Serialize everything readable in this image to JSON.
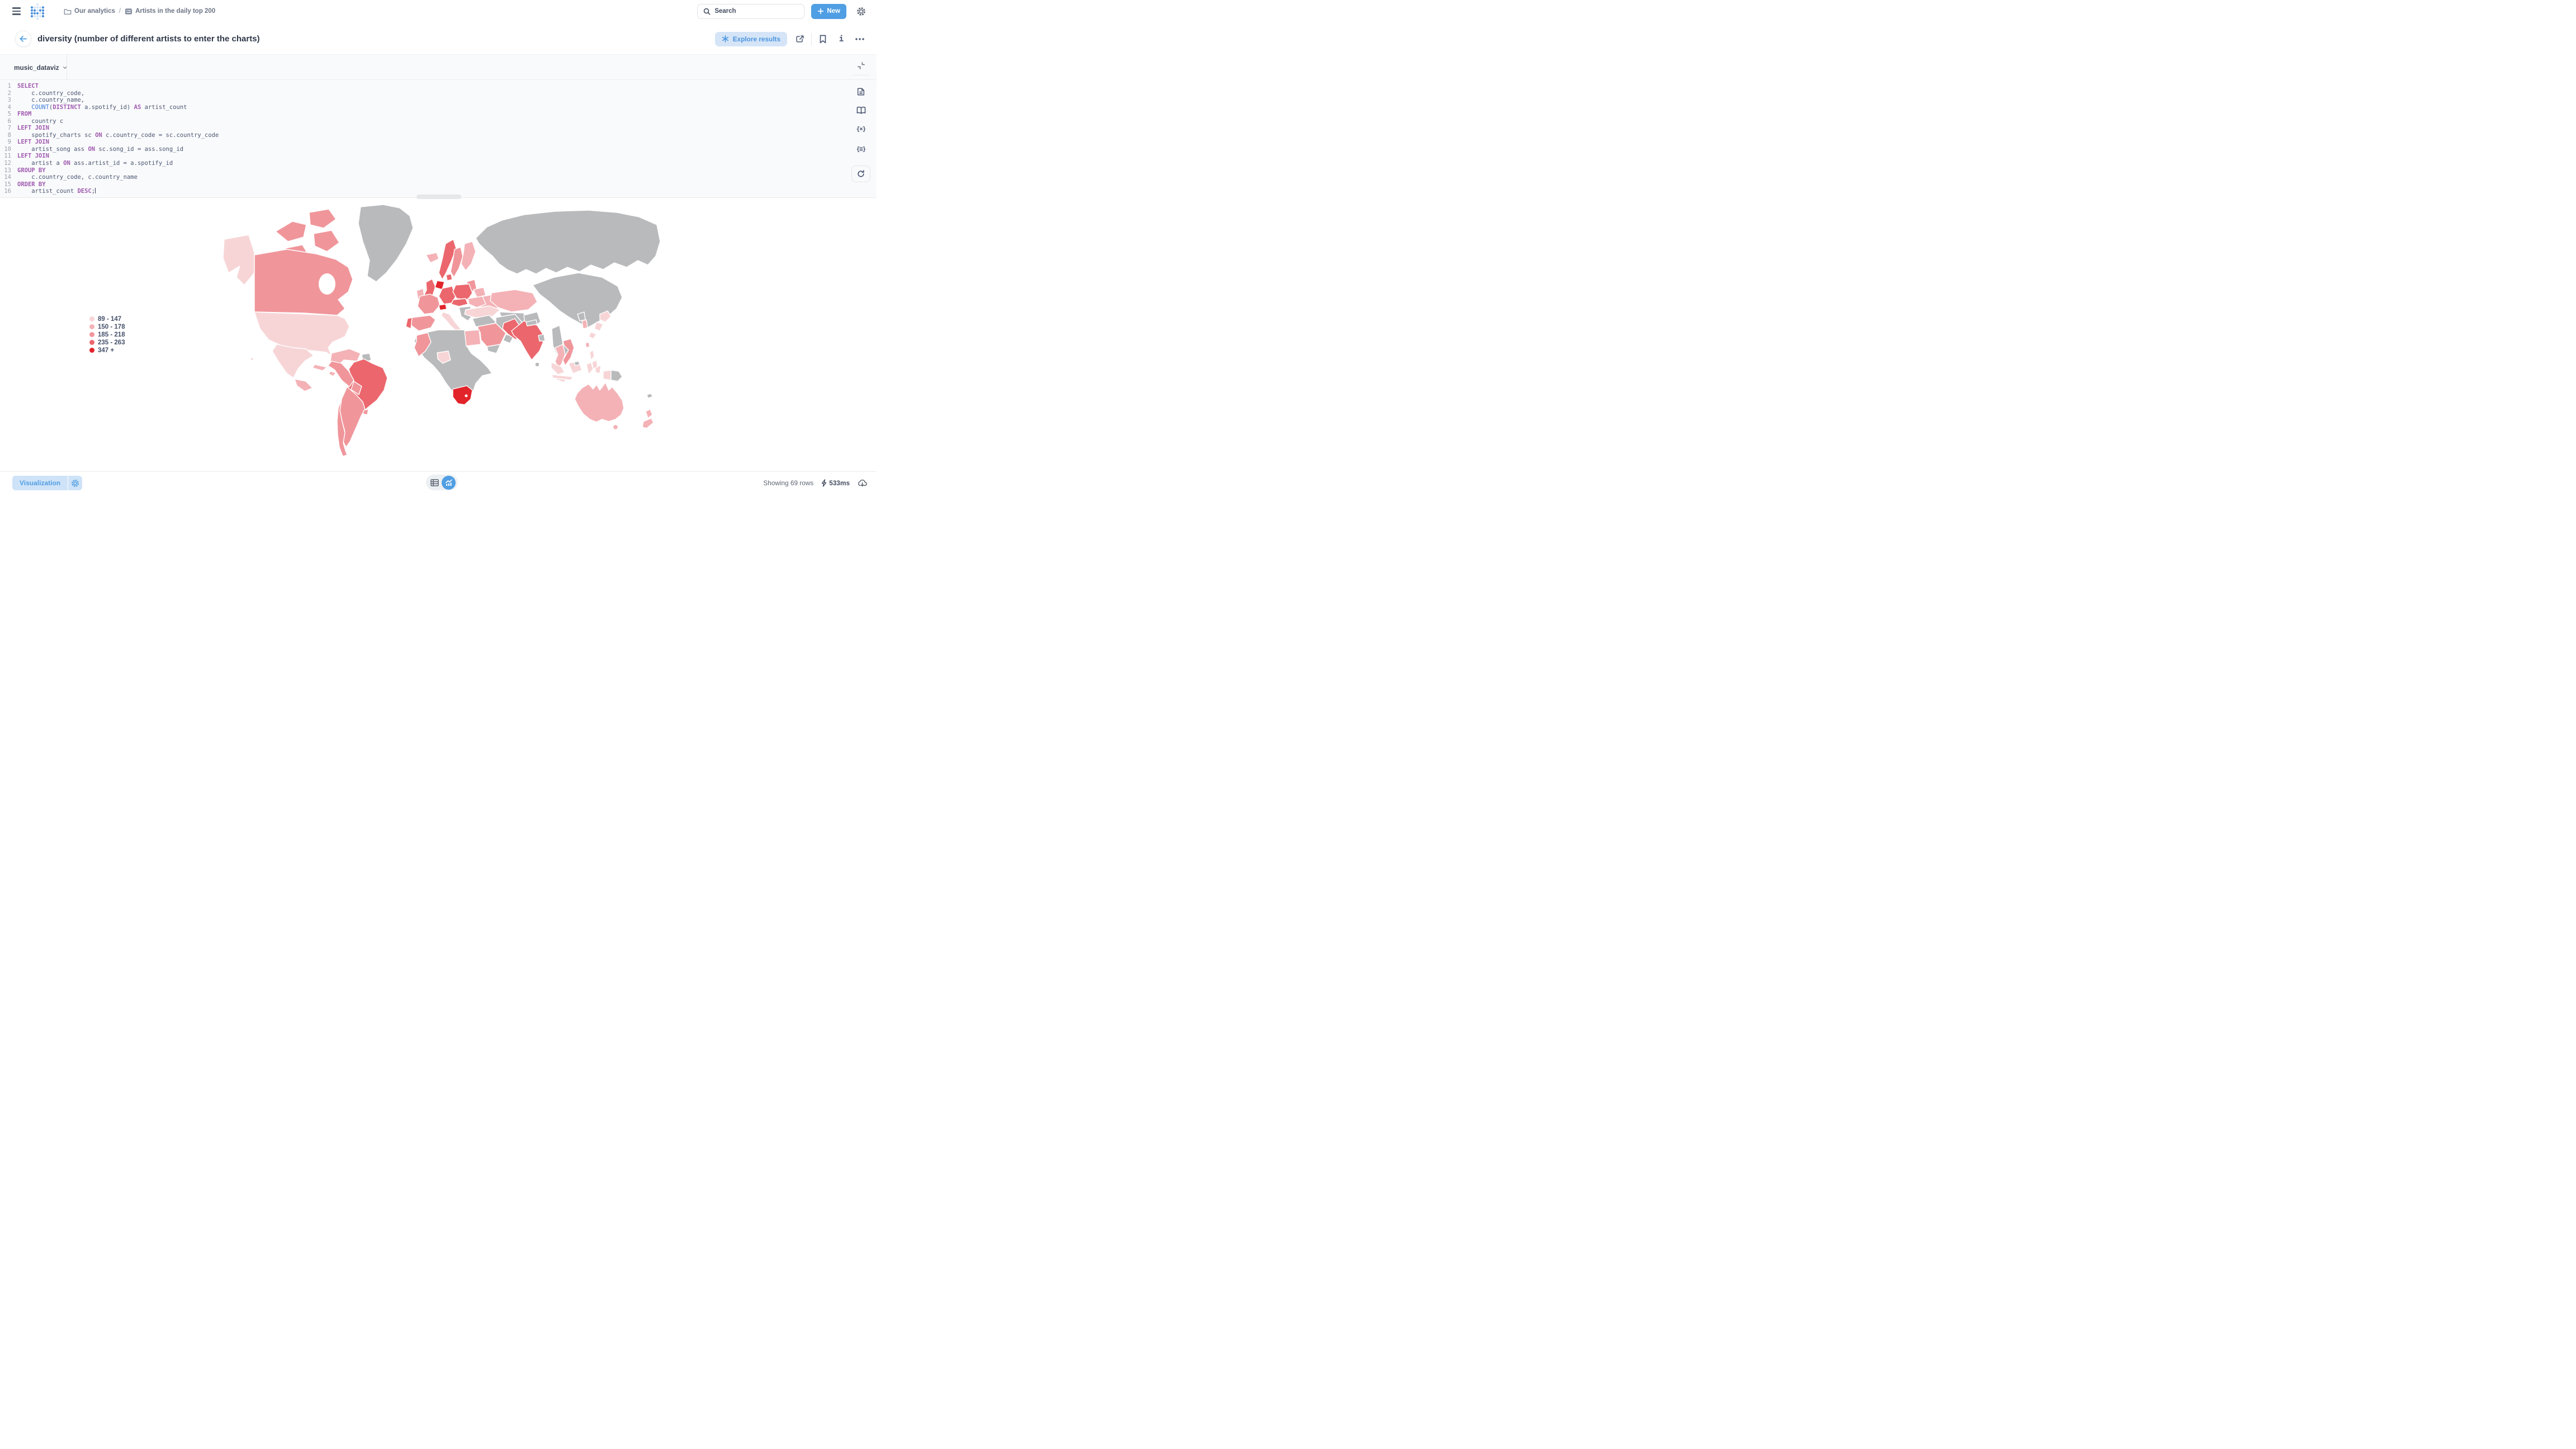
{
  "topnav": {
    "breadcrumb": {
      "collection": "Our analytics",
      "separator": "/",
      "item": "Artists in the daily top 200"
    },
    "search_placeholder": "Search",
    "new_label": "New"
  },
  "header": {
    "title": "diversity (number of different artists to enter the charts)",
    "explore_label": "Explore results"
  },
  "editor": {
    "database": "music_dataviz",
    "token_colors": {
      "kw": "#a05ab0",
      "fn": "#3c7dd9",
      "id": "#4c5773"
    },
    "sql_lines": [
      {
        "n": 1,
        "segs": [
          [
            "kw",
            "SELECT"
          ]
        ]
      },
      {
        "n": 2,
        "segs": [
          [
            "id",
            "    c.country_code,"
          ]
        ]
      },
      {
        "n": 3,
        "segs": [
          [
            "id",
            "    c.country_name,"
          ]
        ]
      },
      {
        "n": 4,
        "segs": [
          [
            "id",
            "    "
          ],
          [
            "fn",
            "COUNT"
          ],
          [
            "id",
            "("
          ],
          [
            "kw",
            "DISTINCT"
          ],
          [
            "id",
            " a.spotify_id) "
          ],
          [
            "kw",
            "AS"
          ],
          [
            "id",
            " artist_count"
          ]
        ]
      },
      {
        "n": 5,
        "segs": [
          [
            "kw",
            "FROM"
          ]
        ]
      },
      {
        "n": 6,
        "segs": [
          [
            "id",
            "    country c"
          ]
        ]
      },
      {
        "n": 7,
        "segs": [
          [
            "kw",
            "LEFT JOIN"
          ]
        ]
      },
      {
        "n": 8,
        "segs": [
          [
            "id",
            "    spotify_charts sc "
          ],
          [
            "kw",
            "ON"
          ],
          [
            "id",
            " c.country_code = sc.country_code"
          ]
        ]
      },
      {
        "n": 9,
        "segs": [
          [
            "kw",
            "LEFT JOIN"
          ]
        ]
      },
      {
        "n": 10,
        "segs": [
          [
            "id",
            "    artist_song ass "
          ],
          [
            "kw",
            "ON"
          ],
          [
            "id",
            " sc.song_id = ass.song_id"
          ]
        ]
      },
      {
        "n": 11,
        "segs": [
          [
            "kw",
            "LEFT JOIN"
          ]
        ]
      },
      {
        "n": 12,
        "segs": [
          [
            "id",
            "    artist a "
          ],
          [
            "kw",
            "ON"
          ],
          [
            "id",
            " ass.artist_id = a.spotify_id"
          ]
        ]
      },
      {
        "n": 13,
        "segs": [
          [
            "kw",
            "GROUP BY"
          ]
        ]
      },
      {
        "n": 14,
        "segs": [
          [
            "id",
            "    c.country_code, c.country_name"
          ]
        ]
      },
      {
        "n": 15,
        "segs": [
          [
            "kw",
            "ORDER BY"
          ]
        ]
      },
      {
        "n": 16,
        "segs": [
          [
            "id",
            "    artist_count "
          ],
          [
            "kw",
            "DESC"
          ],
          [
            "id",
            ";"
          ]
        ],
        "cursor": true
      }
    ]
  },
  "chart_data": {
    "type": "heatmap",
    "subtype": "choropleth-world-map",
    "legend_position": "left",
    "buckets": [
      {
        "label": "89 - 147",
        "color": "#f7d5d6"
      },
      {
        "label": "150 - 178",
        "color": "#f4b2b6"
      },
      {
        "label": "185 - 218",
        "color": "#f0969b"
      },
      {
        "label": "235 - 263",
        "color": "#eb676d"
      },
      {
        "label": "347 +",
        "color": "#e2242b"
      }
    ]
  },
  "map": {
    "ocean_color": "#ffffff",
    "no_data_color": "#b9babc",
    "border_color": "#ffffff",
    "regions": {
      "greenland": "none",
      "canada": 2,
      "canada-arctic-1": 2,
      "canada-arctic-2": 2,
      "canada-arctic-3": 2,
      "canada-arctic-4": 2,
      "alaska": 0,
      "usa": 0,
      "hawaii": 0,
      "mexico": 0,
      "central-america": 1,
      "cuba": 1,
      "hispaniola": 1,
      "colombia-venezuela": 1,
      "guyanas": "none",
      "brazil": 3,
      "peru": 2,
      "bolivia": 2,
      "argentina": 2,
      "chile": 2,
      "uruguay": 2,
      "iceland": 1,
      "norway": 3,
      "sweden": 2,
      "finland": 1,
      "baltics": 2,
      "belarus": 1,
      "ukraine": 1,
      "uk": 3,
      "ireland": 1,
      "denmark": 3,
      "netherlands-belgium": 4,
      "germany": 3,
      "poland": 3,
      "france": 2,
      "switzerland": 4,
      "czech-austria": 3,
      "italy": 0,
      "balkans": "none",
      "hungary-romania": 1,
      "bulgaria": 2,
      "spain": 2,
      "portugal": 3,
      "turkey": 0,
      "russia": "none",
      "kazakhstan": 1,
      "central-asia": "none",
      "china": "none",
      "iran": "none",
      "iraq-levant": "none",
      "afghanistan": "none",
      "saudi-arabia": 2,
      "uae-oman": "none",
      "yemen": "none",
      "egypt": 1,
      "morocco": 2,
      "africa": "none",
      "nigeria": 0,
      "south-africa": 4,
      "pakistan": 3,
      "india": 3,
      "nepal": "none",
      "bangladesh": "none",
      "sri-lanka": "none",
      "myanmar": "none",
      "thailand": 1,
      "laos-cambodia": "none",
      "vietnam": 2,
      "malaysia": 0,
      "sumatra": 0,
      "java": 0,
      "borneo": 0,
      "brunei": "none",
      "sulawesi": 0,
      "maluku": 0,
      "west-papua": 0,
      "papua-new-guinea": "none",
      "philippines": 0,
      "taiwan": 1,
      "south-korea": 1,
      "north-korea": "none",
      "japan-north": 0,
      "japan-main": 0,
      "japan-south": 0,
      "australia": 1,
      "tasmania": 1,
      "nz-north": 1,
      "nz-south": 1,
      "new-caledonia": "none"
    }
  },
  "footer": {
    "visualization_label": "Visualization",
    "row_count": "Showing 69 rows",
    "duration": "533ms"
  }
}
